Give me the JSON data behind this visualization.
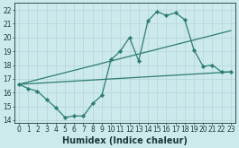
{
  "line1": {
    "x": [
      0,
      1,
      2,
      3,
      4,
      5,
      6,
      7,
      8,
      9,
      10,
      11,
      12,
      13,
      14,
      15,
      16,
      17,
      18,
      19,
      20,
      21,
      22,
      23
    ],
    "y": [
      16.6,
      16.3,
      16.1,
      15.5,
      14.9,
      14.2,
      14.3,
      14.3,
      15.2,
      15.8,
      18.4,
      19.0,
      20.0,
      18.3,
      21.2,
      21.9,
      21.6,
      21.8,
      21.3,
      19.1,
      17.9,
      18.0,
      17.5,
      17.5
    ],
    "color": "#2d7d6f",
    "marker": "D",
    "markersize": 2.2,
    "linewidth": 0.9
  },
  "line2": {
    "x": [
      0,
      23
    ],
    "y": [
      16.6,
      20.5
    ],
    "color": "#2d7d6f",
    "marker": null,
    "markersize": 0,
    "linewidth": 0.9
  },
  "line3": {
    "x": [
      0,
      23
    ],
    "y": [
      16.6,
      17.5
    ],
    "color": "#2d7d6f",
    "marker": null,
    "markersize": 0,
    "linewidth": 0.9
  },
  "xlabel": "Humidex (Indice chaleur)",
  "xlim": [
    -0.5,
    23.5
  ],
  "ylim": [
    13.8,
    22.5
  ],
  "yticks": [
    14,
    15,
    16,
    17,
    18,
    19,
    20,
    21,
    22
  ],
  "xticks": [
    0,
    1,
    2,
    3,
    4,
    5,
    6,
    7,
    8,
    9,
    10,
    11,
    12,
    13,
    14,
    15,
    16,
    17,
    18,
    19,
    20,
    21,
    22,
    23
  ],
  "bg_color": "#cce9ec",
  "grid_color": "#b5d5d8",
  "text_color": "#1a3a3a",
  "tick_fontsize": 5.5,
  "xlabel_fontsize": 7.0
}
